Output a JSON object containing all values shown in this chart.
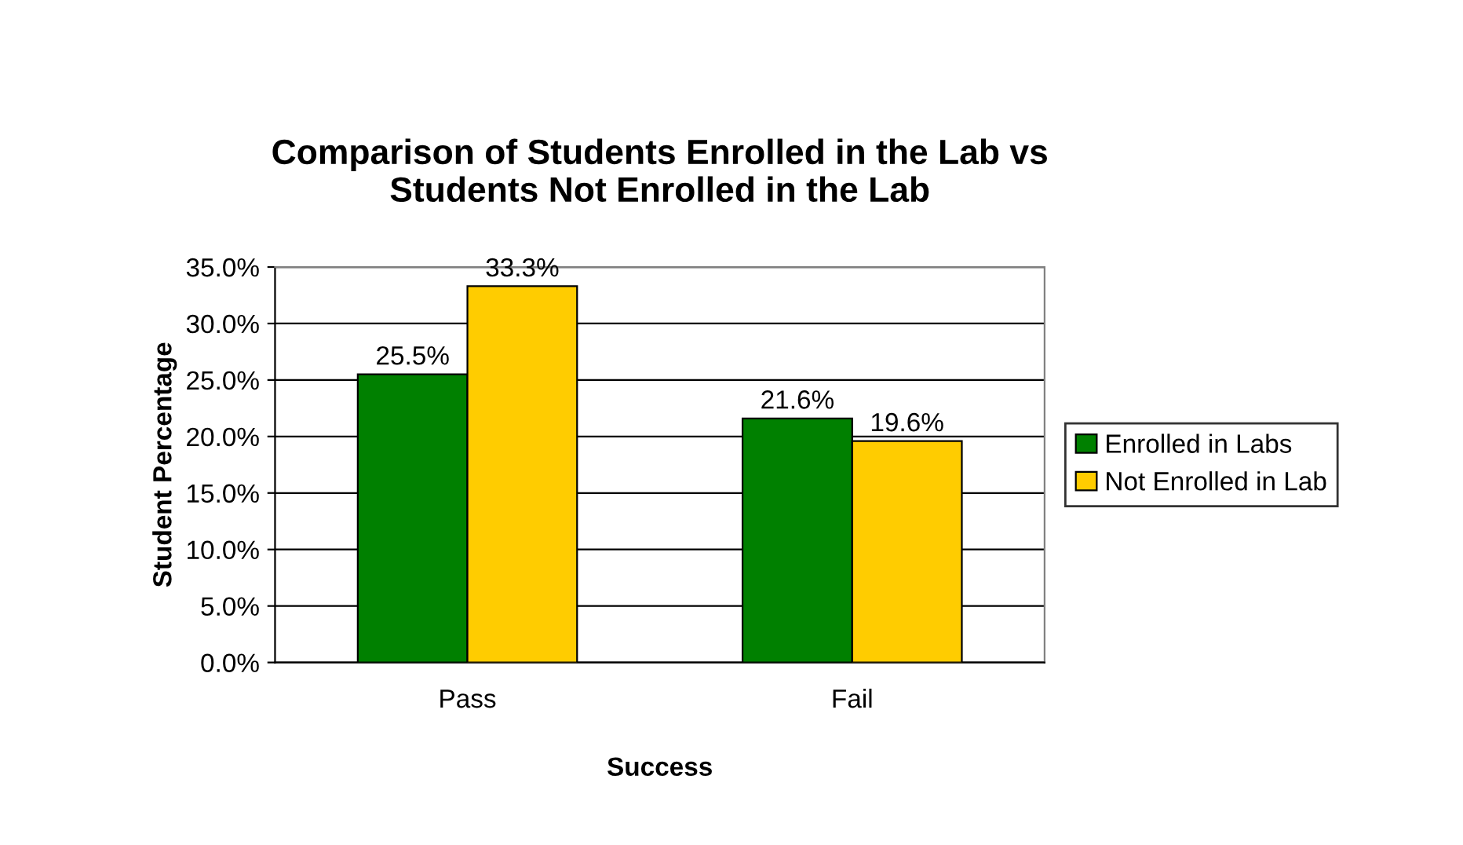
{
  "chart_data": {
    "type": "bar",
    "title": "Comparison of Students Enrolled in the Lab vs\nStudents Not Enrolled in the Lab",
    "xlabel": "Success",
    "ylabel": "Student Percentage",
    "categories": [
      "Pass",
      "Fail"
    ],
    "series": [
      {
        "name": "Enrolled in Labs",
        "color": "#008000",
        "values": [
          25.5,
          21.6
        ],
        "value_labels": [
          "25.5%",
          "21.6%"
        ]
      },
      {
        "name": "Not Enrolled in Lab",
        "color": "#ffcc00",
        "values": [
          33.3,
          19.6
        ],
        "value_labels": [
          "33.3%",
          "19.6%"
        ]
      }
    ],
    "ylim": [
      0,
      35
    ],
    "yticks": [
      {
        "value": 0,
        "label": "0.0%"
      },
      {
        "value": 5,
        "label": "5.0%"
      },
      {
        "value": 10,
        "label": "10.0%"
      },
      {
        "value": 15,
        "label": "15.0%"
      },
      {
        "value": 20,
        "label": "20.0%"
      },
      {
        "value": 25,
        "label": "25.0%"
      },
      {
        "value": 30,
        "label": "30.0%"
      },
      {
        "value": 35,
        "label": "35.0%"
      }
    ],
    "grid": "y",
    "legend": "right"
  }
}
